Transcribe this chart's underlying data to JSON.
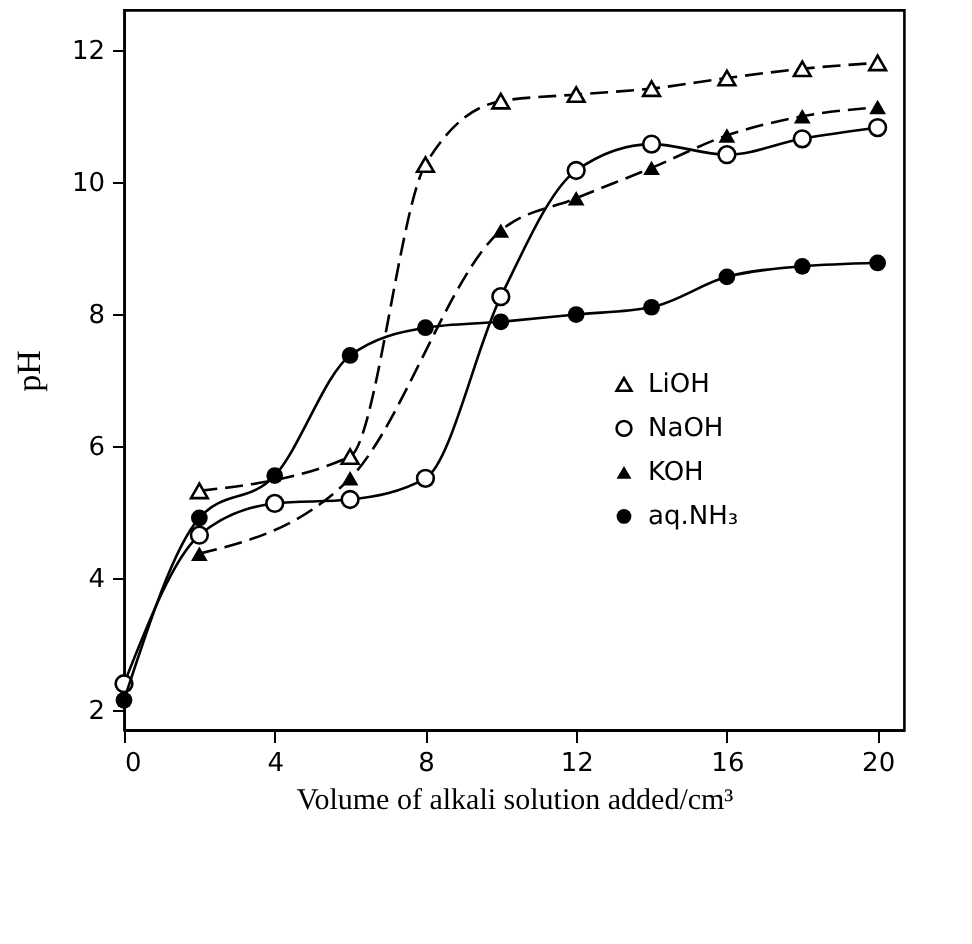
{
  "chart_data": {
    "type": "line",
    "xlabel": "Volume of alkali solution added/cm³",
    "ylabel": "pH",
    "xlim": [
      0,
      20.7
    ],
    "ylim": [
      1.7,
      12.6
    ],
    "xticks": [
      0,
      4,
      8,
      12,
      16,
      20
    ],
    "yticks": [
      2,
      4,
      6,
      8,
      10,
      12
    ],
    "grid": false,
    "legend": "right",
    "series": [
      {
        "name": "LiOH",
        "color": "#000000",
        "marker": "triangle",
        "line_style": "dashed",
        "x": [
          2,
          6,
          8,
          10,
          12,
          14,
          16,
          18,
          20
        ],
        "values": [
          5.32,
          5.84,
          10.26,
          11.22,
          11.32,
          11.41,
          11.57,
          11.71,
          11.8
        ]
      },
      {
        "name": "NaOH",
        "color": "#000000",
        "marker": "circle",
        "line_style": "solid",
        "x": [
          0,
          2,
          4,
          6,
          8,
          10,
          12,
          14,
          16,
          18,
          20
        ],
        "values": [
          2.4,
          4.65,
          5.13,
          5.19,
          5.51,
          8.26,
          10.17,
          10.57,
          10.41,
          10.65,
          10.82
        ]
      },
      {
        "name": "KOH",
        "color": "#000000",
        "marker": "triangle",
        "line_style": "dashed",
        "x": [
          2,
          6,
          10,
          12,
          14,
          16,
          18,
          20
        ],
        "values": [
          4.37,
          5.51,
          9.26,
          9.75,
          10.21,
          10.7,
          10.99,
          11.13
        ]
      },
      {
        "name": "aq.NH₃",
        "color": "#000000",
        "marker": "circle",
        "line_style": "solid",
        "x": [
          0,
          2,
          4,
          6,
          8,
          10,
          12,
          14,
          16,
          18,
          20
        ],
        "values": [
          2.15,
          4.91,
          5.55,
          7.37,
          7.79,
          7.88,
          7.99,
          8.1,
          8.56,
          8.72,
          8.77
        ]
      }
    ]
  }
}
